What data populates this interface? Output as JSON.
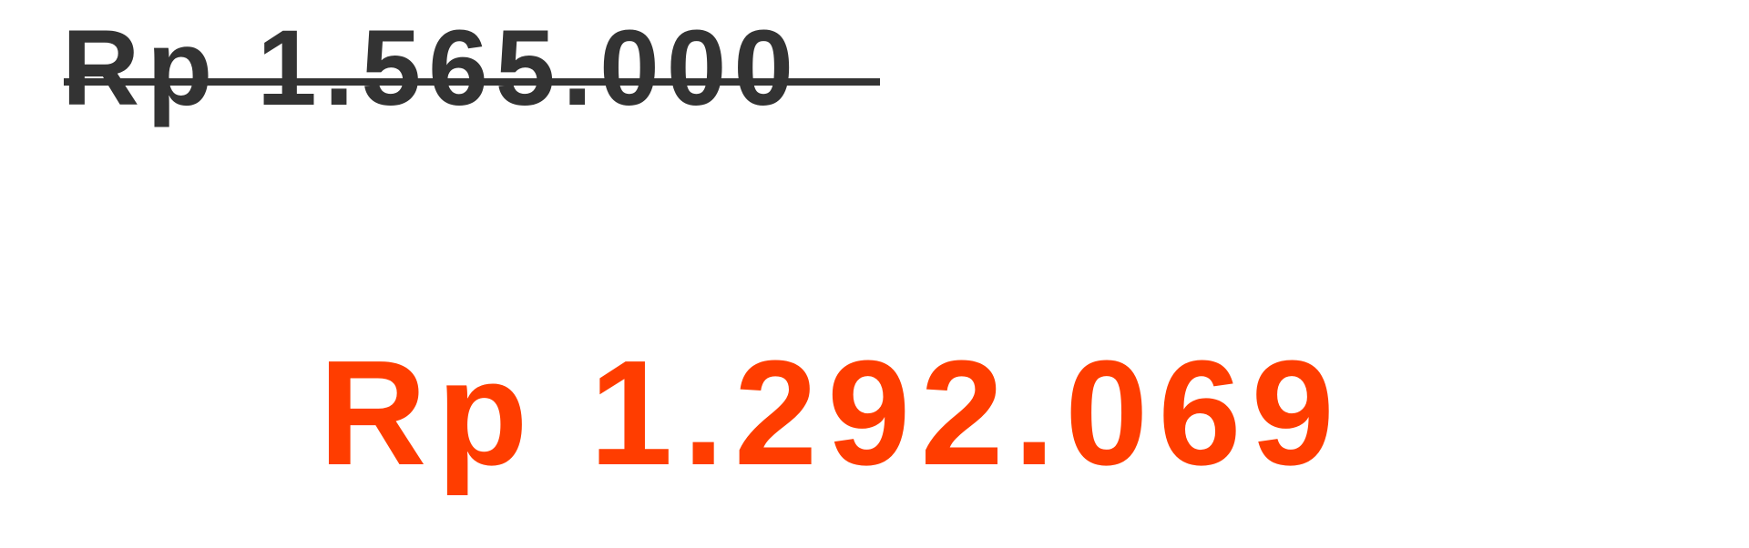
{
  "pricing": {
    "original_price": "Rp 1.565.000",
    "sale_price": "Rp 1.292.069"
  },
  "colors": {
    "original_price": "#333333",
    "sale_price": "#ff3d00",
    "background": "#ffffff"
  }
}
